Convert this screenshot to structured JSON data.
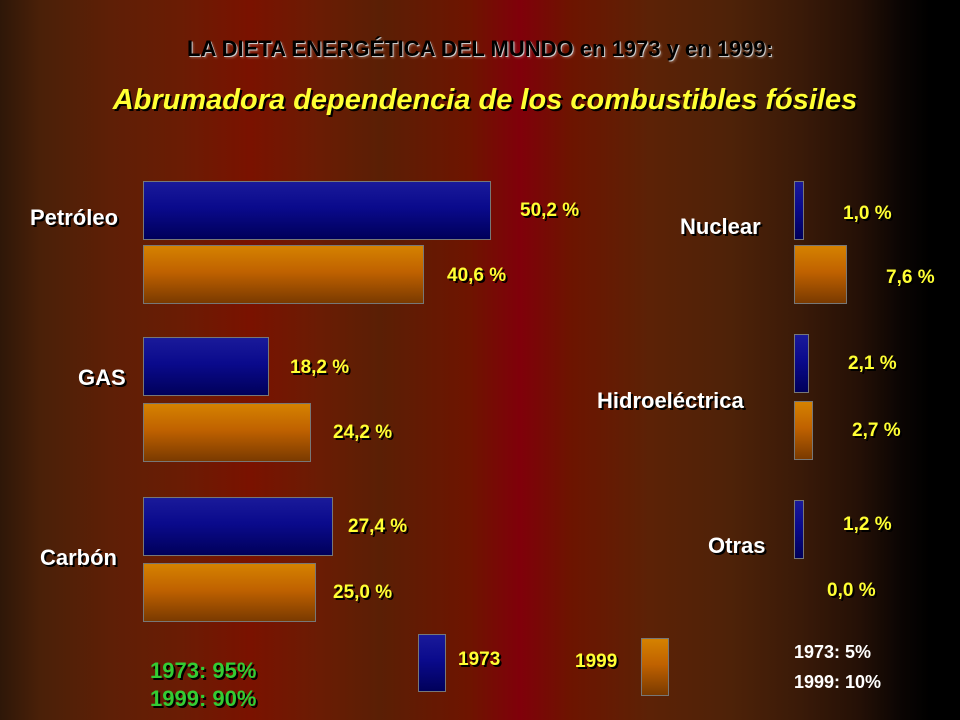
{
  "title": "LA DIETA ENERGÉTICA DEL MUNDO en 1973 y en 1999:",
  "subtitle": "Abrumadora dependencia de los combustibles fósiles",
  "chart_data": {
    "type": "bar",
    "orientation": "horizontal",
    "series": [
      {
        "name": "1973",
        "color": "#0a0a8c"
      },
      {
        "name": "1999",
        "color": "#c06200"
      }
    ],
    "groups": [
      {
        "category": "Petróleo",
        "values": [
          50.2,
          40.6
        ],
        "labels": [
          "50,2 %",
          "40,6 %"
        ]
      },
      {
        "category": "GAS",
        "values": [
          18.2,
          24.2
        ],
        "labels": [
          "18,2 %",
          "24,2 %"
        ]
      },
      {
        "category": "Carbón",
        "values": [
          27.4,
          25.0
        ],
        "labels": [
          "27,4 %",
          "25,0 %"
        ]
      },
      {
        "category": "Nuclear",
        "values": [
          1.0,
          7.6
        ],
        "labels": [
          "1,0 %",
          "7,6 %"
        ]
      },
      {
        "category": "Hidroeléctrica",
        "values": [
          2.1,
          2.7
        ],
        "labels": [
          "2,1 %",
          "2,7 %"
        ]
      },
      {
        "category": "Otras",
        "values": [
          1.2,
          0.0
        ],
        "labels": [
          "1,2 %",
          "0,0 %"
        ]
      }
    ]
  },
  "legend": {
    "label_1973": "1973",
    "label_1999": "1999"
  },
  "fossil_totals": {
    "line1": "1973: 95%",
    "line2": "1999: 90%"
  },
  "other_totals": {
    "line1": "1973: 5%",
    "line2": "1999: 10%"
  }
}
